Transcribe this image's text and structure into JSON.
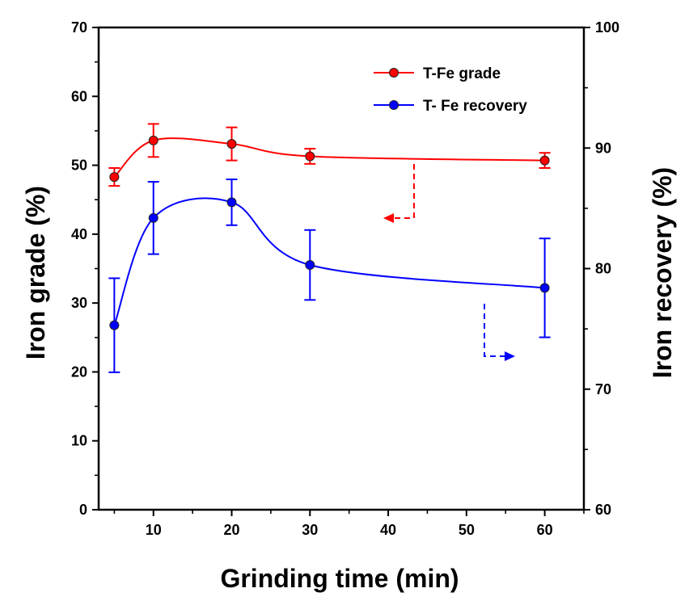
{
  "chart_data": {
    "type": "line",
    "xlabel": "Grinding time (min)",
    "ylabel_left": "Iron grade (%)",
    "ylabel_right": "Iron recovery (%)",
    "x_ticks": [
      "10",
      "20",
      "30",
      "40",
      "50",
      "60"
    ],
    "y_left_ticks": [
      "0",
      "10",
      "20",
      "30",
      "40",
      "50",
      "60",
      "70"
    ],
    "y_right_ticks": [
      "60",
      "70",
      "80",
      "90",
      "100"
    ],
    "xlim": [
      3,
      65
    ],
    "ylim_left": [
      0,
      70
    ],
    "ylim_right": [
      60,
      100
    ],
    "grid": false,
    "legend_position": "top-right",
    "series": [
      {
        "name": "T-Fe grade",
        "axis": "left",
        "color": "#ff0000",
        "x": [
          5,
          10,
          20,
          30,
          60
        ],
        "y": [
          48.3,
          53.6,
          53.1,
          51.3,
          50.7
        ],
        "err": [
          1.3,
          2.4,
          2.4,
          1.1,
          1.1
        ]
      },
      {
        "name": "T- Fe recovery",
        "axis": "right",
        "color": "#0000ff",
        "x": [
          5,
          10,
          20,
          30,
          60
        ],
        "y": [
          75.3,
          84.2,
          85.5,
          80.3,
          78.4
        ],
        "err": [
          3.9,
          3.0,
          1.9,
          2.9,
          4.1
        ]
      }
    ]
  }
}
